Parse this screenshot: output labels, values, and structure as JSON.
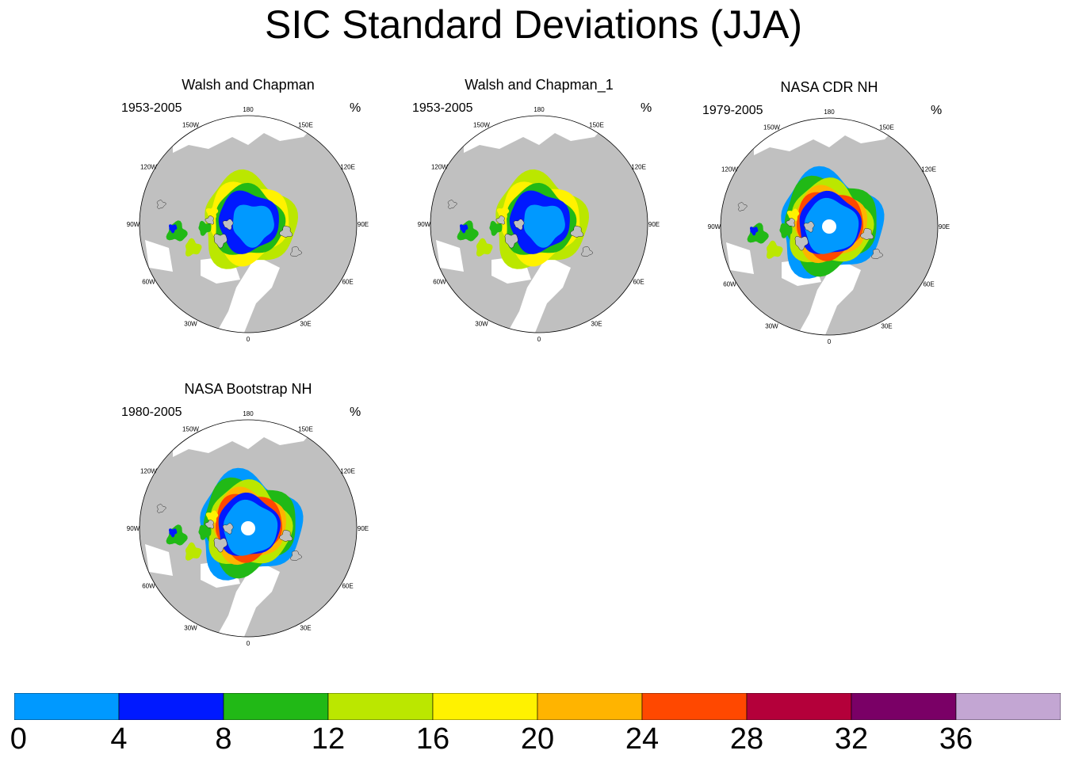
{
  "title": "SIC Standard Deviations (JJA)",
  "panels": [
    {
      "title": "Walsh and Chapman",
      "period": "1953-2005",
      "unit": "%",
      "style": "wc"
    },
    {
      "title": "Walsh and Chapman_1",
      "period": "1953-2005",
      "unit": "%",
      "style": "wc"
    },
    {
      "title": "NASA CDR NH",
      "period": "1979-2005",
      "unit": "%",
      "style": "sat"
    },
    {
      "title": "NASA Bootstrap NH",
      "period": "1980-2005",
      "unit": "%",
      "style": "sat"
    }
  ],
  "longitude_labels": [
    "180",
    "150E",
    "120E",
    "90E",
    "60E",
    "30E",
    "0",
    "30W",
    "60W",
    "90W",
    "120W",
    "150W"
  ],
  "colorbar": {
    "levels": [
      "0",
      "4",
      "8",
      "12",
      "16",
      "20",
      "24",
      "28",
      "32",
      "36"
    ],
    "colors": [
      "#0099ff",
      "#0019ff",
      "#21b916",
      "#bbe700",
      "#fff200",
      "#ffb400",
      "#ff4800",
      "#b4003a",
      "#7a0066",
      "#c3a6d3"
    ]
  },
  "colors": {
    "land": "#c0c0c0",
    "ocean": "#ffffff"
  }
}
